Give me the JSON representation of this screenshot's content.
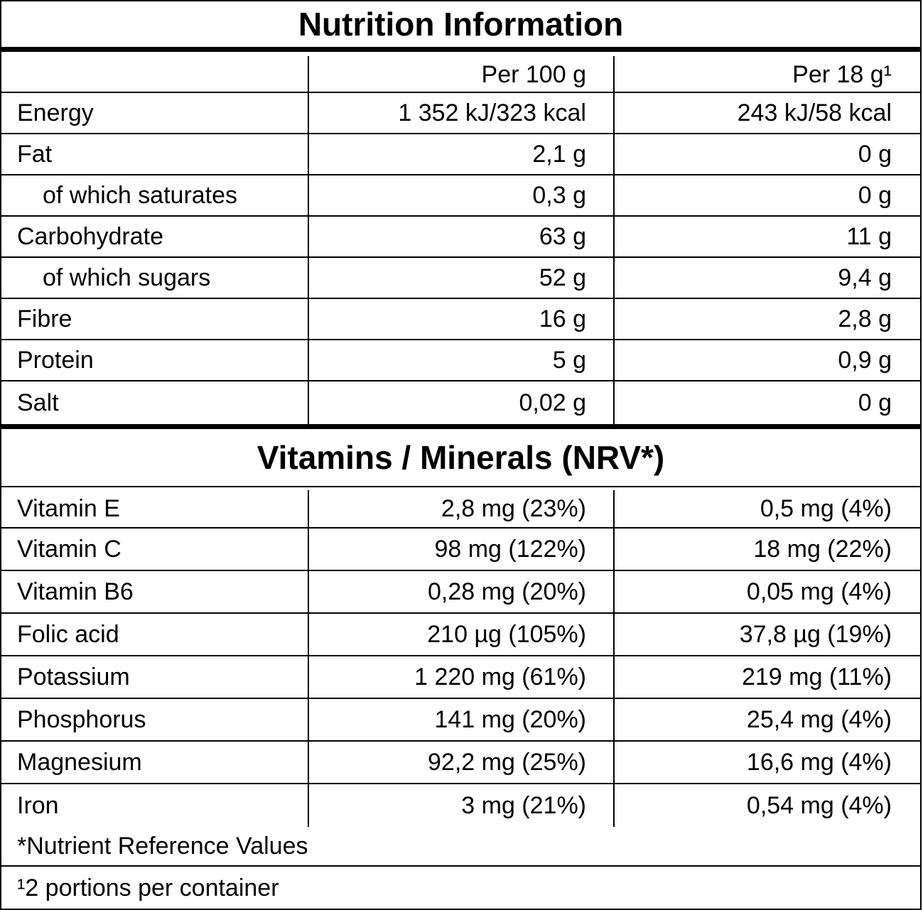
{
  "title": "Nutrition Information",
  "columns": [
    "",
    "Per 100 g",
    "Per 18 g¹"
  ],
  "nutrition": [
    {
      "name": "Energy",
      "per100": "1 352 kJ/323 kcal",
      "perPortion": "243 kJ/58 kcal",
      "indent": false
    },
    {
      "name": "Fat",
      "per100": "2,1 g",
      "perPortion": "0 g",
      "indent": false
    },
    {
      "name": "of which saturates",
      "per100": "0,3 g",
      "perPortion": "0 g",
      "indent": true
    },
    {
      "name": "Carbohydrate",
      "per100": "63 g",
      "perPortion": "11 g",
      "indent": false
    },
    {
      "name": "of which sugars",
      "per100": "52 g",
      "perPortion": "9,4 g",
      "indent": true
    },
    {
      "name": "Fibre",
      "per100": "16 g",
      "perPortion": "2,8 g",
      "indent": false
    },
    {
      "name": "Protein",
      "per100": "5 g",
      "perPortion": "0,9 g",
      "indent": false
    },
    {
      "name": "Salt",
      "per100": "0,02 g",
      "perPortion": "0 g",
      "indent": false
    }
  ],
  "vitamins_title": "Vitamins / Minerals (NRV*)",
  "vitamins": [
    {
      "name": "Vitamin E",
      "per100": "2,8 mg (23%)",
      "perPortion": "0,5 mg (4%)"
    },
    {
      "name": "Vitamin C",
      "per100": "98 mg (122%)",
      "perPortion": "18 mg (22%)"
    },
    {
      "name": "Vitamin B6",
      "per100": "0,28 mg (20%)",
      "perPortion": "0,05 mg (4%)"
    },
    {
      "name": "Folic acid",
      "per100": "210 µg (105%)",
      "perPortion": "37,8 µg (19%)"
    },
    {
      "name": "Potassium",
      "per100": "1 220 mg (61%)",
      "perPortion": "219 mg (11%)"
    },
    {
      "name": "Phosphorus",
      "per100": "141 mg (20%)",
      "perPortion": "25,4 mg (4%)"
    },
    {
      "name": "Magnesium",
      "per100": "92,2 mg (25%)",
      "perPortion": "16,6 mg (4%)"
    },
    {
      "name": "Iron",
      "per100": "3 mg (21%)",
      "perPortion": "0,54 mg (4%)"
    }
  ],
  "footnotes": [
    "*Nutrient Reference Values",
    "¹2 portions per container"
  ]
}
